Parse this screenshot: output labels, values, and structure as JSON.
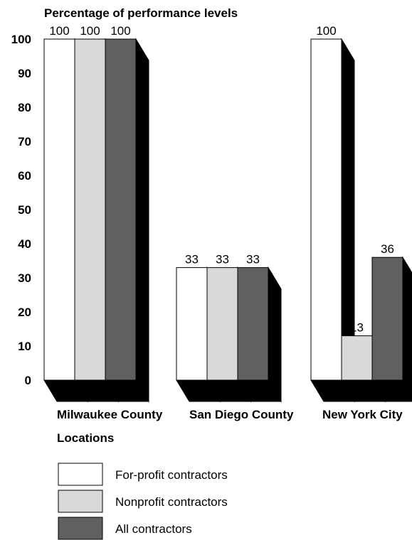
{
  "chart_data": {
    "type": "bar",
    "title": "",
    "ylabel": "Percentage of performance levels",
    "xlabel": "Locations",
    "ylim": [
      0,
      100
    ],
    "yticks": [
      "100",
      "90",
      "80",
      "70",
      "60",
      "50",
      "40",
      "30",
      "20",
      "10",
      "0"
    ],
    "categories": [
      "Milwaukee County",
      "San Diego County",
      "New York City"
    ],
    "series": [
      {
        "name": "For-profit contractors",
        "color": "#ffffff",
        "values": [
          100,
          33,
          100
        ]
      },
      {
        "name": "Nonprofit contractors",
        "color": "#d9d9d9",
        "values": [
          100,
          33,
          13
        ]
      },
      {
        "name": "All contractors",
        "color": "#606060",
        "values": [
          100,
          33,
          36
        ]
      }
    ],
    "legend_position": "bottom-left",
    "style": "3d"
  }
}
